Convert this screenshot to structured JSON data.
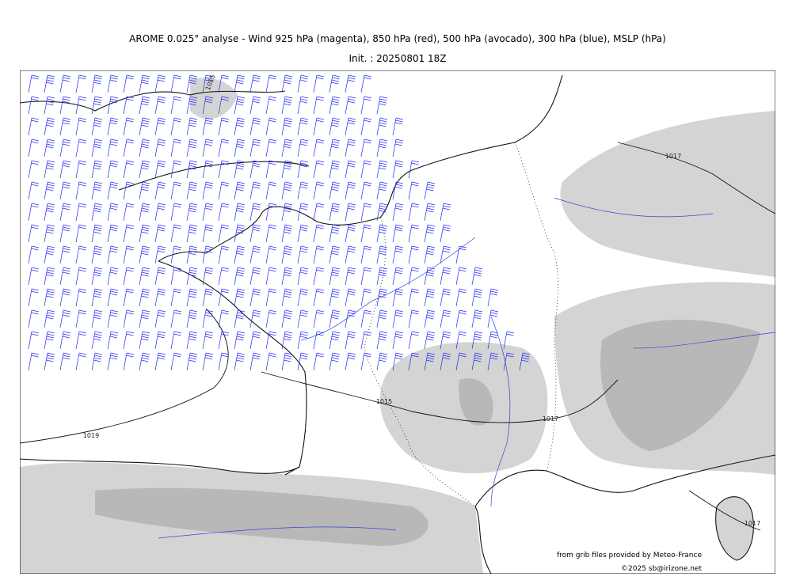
{
  "header": {
    "title": "AROME 0.025° analyse - Wind 925 hPa (magenta), 850 hPa (red), 500 hPa (avocado), 300 hPa (blue), MSLP (hPa)",
    "init": "Init. : 20250801 18Z"
  },
  "map": {
    "isobar_labels": [
      "1015",
      "1019",
      "1017",
      "1017",
      "1015",
      "1017"
    ]
  },
  "footer": {
    "source": "from grib files provided by Meteo-France",
    "copyright": "©2025 sb@irizone.net"
  }
}
